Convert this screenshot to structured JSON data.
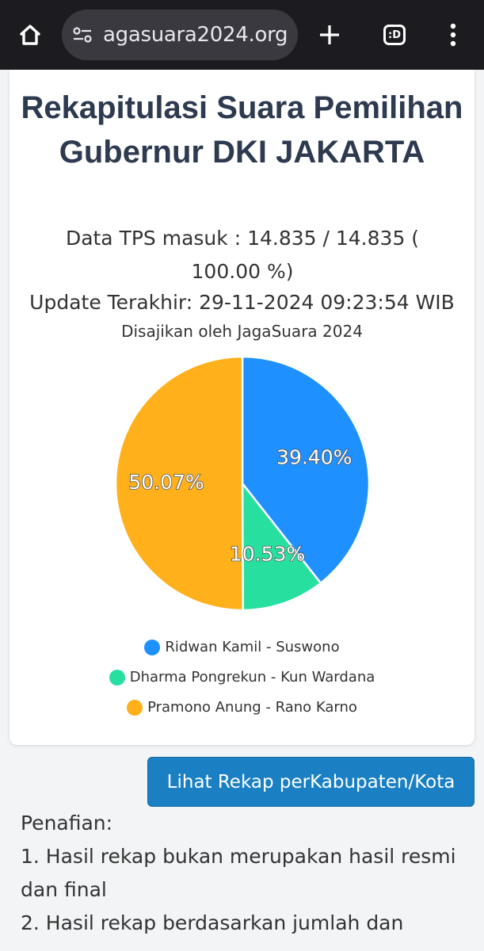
{
  "browser": {
    "url": "agasuara2024.org",
    "tab_count_label": ":D"
  },
  "header": {
    "title": "Rekapitulasi Suara Pemilihan Gubernur DKI JAKARTA",
    "tps_text": "Data TPS masuk : 14.835 / 14.835 ( 100.00 %)",
    "update_text": "Update Terakhir: 29-11-2024 09:23:54 WIB",
    "source_text": "Disajikan oleh JagaSuara 2024"
  },
  "chart_data": {
    "type": "pie",
    "categories": [
      "Ridwan Kamil - Suswono",
      "Dharma Pongrekun - Kun Wardana",
      "Pramono Anung - Rano Karno"
    ],
    "values": [
      39.4,
      10.53,
      50.07
    ],
    "labels": [
      "39.40%",
      "10.53%",
      "50.07%"
    ],
    "colors": [
      "#1e90ff",
      "#27e0a0",
      "#ffb01a"
    ],
    "legend": "bottom"
  },
  "actions": {
    "rekap_button": "Lihat Rekap perKabupaten/Kota"
  },
  "disclaimer": {
    "heading": "Penafian:",
    "item1": "1. Hasil rekap bukan merupakan hasil resmi dan final",
    "item2": "2. Hasil rekap berdasarkan jumlah dan"
  },
  "colors": {
    "title": "#2d3a4f",
    "button": "#1a80c3",
    "topbar": "#1c1b1f"
  }
}
